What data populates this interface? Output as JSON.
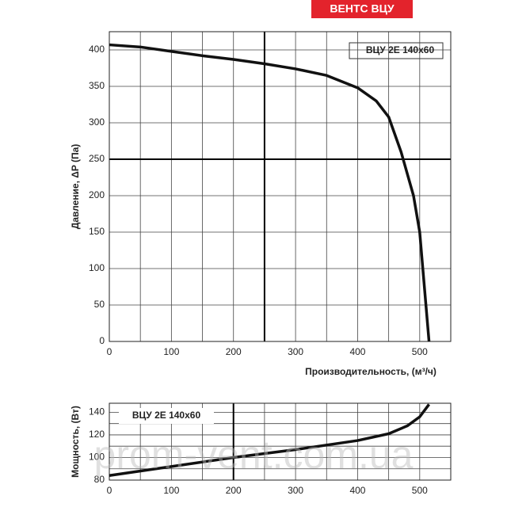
{
  "header": "ВЕНТС ВЦУ",
  "watermark": "prom-vent.com.ua",
  "chart_data": [
    {
      "type": "line",
      "annotation": "ВЦУ 2Е 140х60",
      "y_label": "Давление, ΔP (Па)",
      "x_label": "Производительность, (м³/ч)",
      "xlim": [
        0,
        550
      ],
      "ylim": [
        0,
        425
      ],
      "xticks": [
        0,
        100,
        200,
        300,
        400,
        500
      ],
      "yticks": [
        0,
        50,
        100,
        150,
        200,
        250,
        300,
        350,
        400
      ],
      "xminor": [
        50,
        150,
        250,
        350,
        450
      ],
      "major_x": 250,
      "major_y": 250,
      "series": [
        {
          "color": "#111111",
          "x": [
            0,
            50,
            100,
            150,
            200,
            250,
            300,
            350,
            400,
            430,
            450,
            470,
            490,
            500,
            505,
            510,
            515
          ],
          "values": [
            407,
            404,
            398,
            392,
            387,
            381,
            374,
            365,
            348,
            330,
            308,
            260,
            200,
            150,
            100,
            50,
            0
          ]
        }
      ]
    },
    {
      "type": "line",
      "annotation": "ВЦУ 2Е 140х60",
      "y_label": "Мощность, (Вт)",
      "xlim": [
        0,
        550
      ],
      "ylim": [
        80,
        148
      ],
      "xticks": [
        0,
        100,
        200,
        300,
        400,
        500
      ],
      "yticks": [
        80,
        100,
        120,
        140
      ],
      "xminor": [
        50,
        150,
        250,
        350,
        450
      ],
      "yminor": [
        90,
        110,
        130
      ],
      "major_x": 200,
      "series": [
        {
          "color": "#111111",
          "x": [
            0,
            100,
            200,
            300,
            400,
            450,
            480,
            500,
            515
          ],
          "values": [
            84,
            92,
            100,
            107,
            115,
            121,
            128,
            136,
            147
          ]
        }
      ]
    }
  ]
}
